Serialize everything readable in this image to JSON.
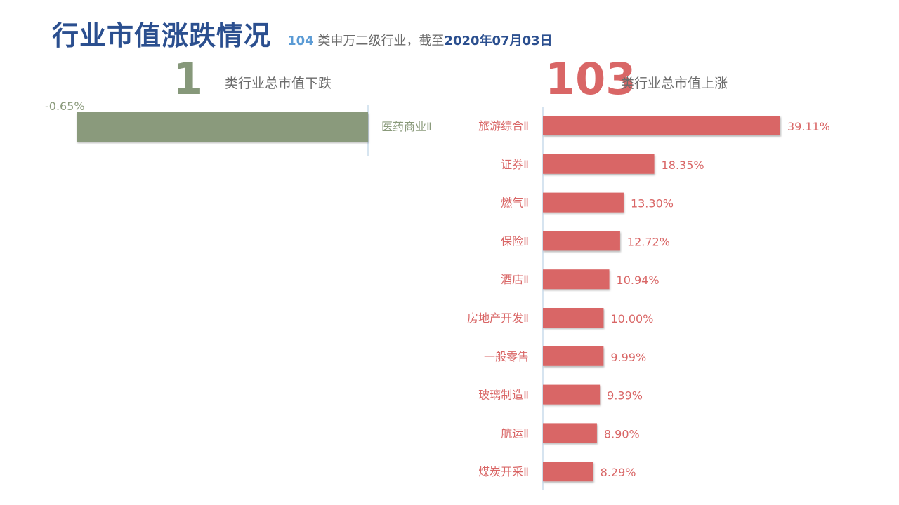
{
  "header": {
    "title": "行业市值涨跌情况",
    "sub_count": "104",
    "sub_text": "类申万二级行业，截至",
    "sub_date": "2020年07月03日"
  },
  "summary": {
    "decline_count": "1",
    "decline_label": "类行业总市值下跌",
    "rise_count": "103",
    "rise_label": "类行业总市值上涨"
  },
  "colors": {
    "decline": "#8a9a7b",
    "rise": "#d96666",
    "axis": "#bcd3e6"
  },
  "chart_data": [
    {
      "type": "bar",
      "orientation": "horizontal",
      "categories": [
        "医药商业Ⅱ"
      ],
      "values": [
        -0.65
      ],
      "value_labels": [
        "-0.65%"
      ]
    },
    {
      "type": "bar",
      "orientation": "horizontal",
      "categories": [
        "旅游综合Ⅱ",
        "证券Ⅱ",
        "燃气Ⅱ",
        "保险Ⅱ",
        "酒店Ⅱ",
        "房地产开发Ⅱ",
        "一般零售",
        "玻璃制造Ⅱ",
        "航运Ⅱ",
        "煤炭开采Ⅱ"
      ],
      "values": [
        39.11,
        18.35,
        13.3,
        12.72,
        10.94,
        10.0,
        9.99,
        9.39,
        8.9,
        8.29
      ],
      "value_labels": [
        "39.11%",
        "18.35%",
        "13.30%",
        "12.72%",
        "10.94%",
        "10.00%",
        "9.99%",
        "9.39%",
        "8.90%",
        "8.29%"
      ]
    }
  ]
}
